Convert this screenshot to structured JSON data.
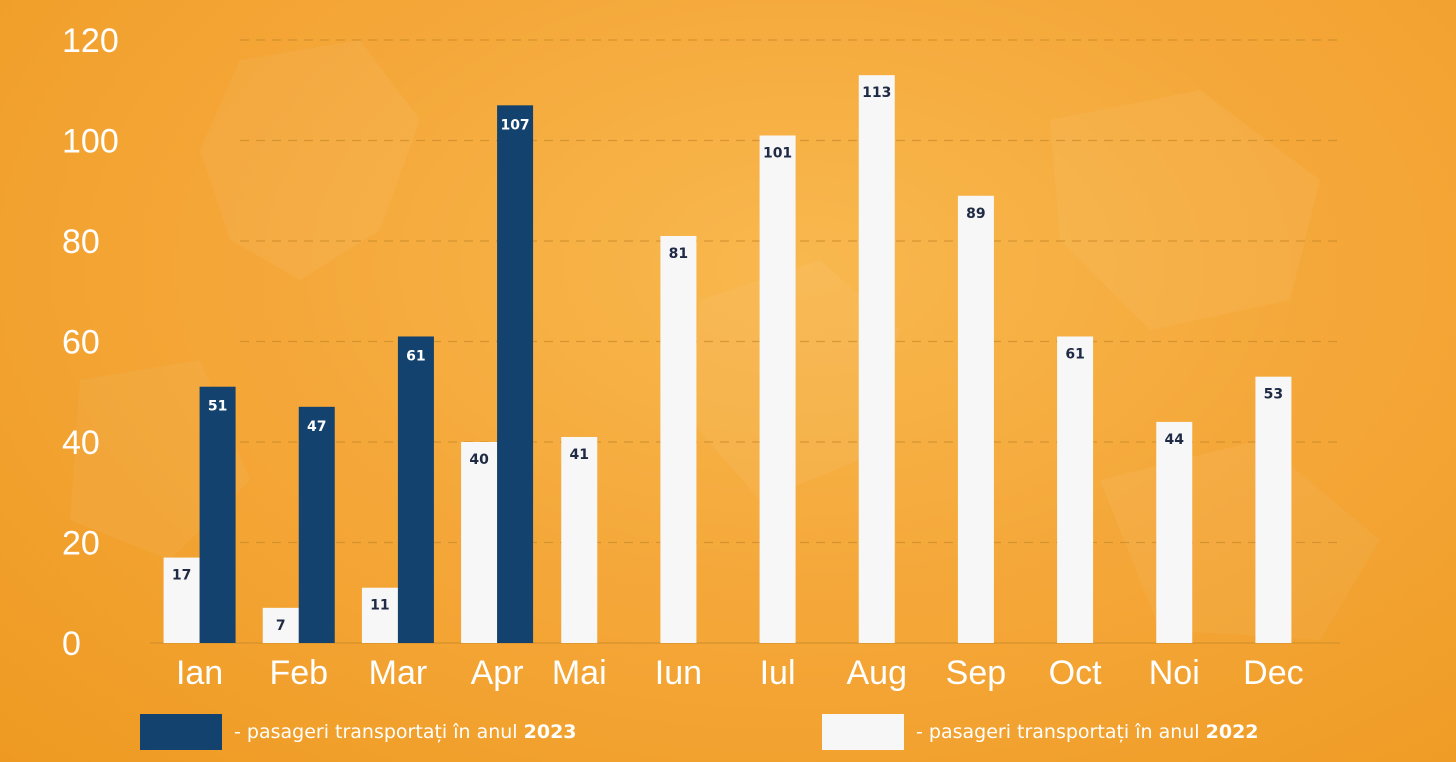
{
  "chart_data": {
    "type": "bar",
    "categories": [
      "Ian",
      "Feb",
      "Mar",
      "Apr",
      "Mai",
      "Iun",
      "Iul",
      "Aug",
      "Sep",
      "Oct",
      "Noi",
      "Dec"
    ],
    "series": [
      {
        "name": "2022",
        "values": [
          17,
          7,
          11,
          40,
          41,
          81,
          101,
          113,
          89,
          61,
          44,
          53
        ],
        "color": "#f7f7f7",
        "label_color": "#1f2a44"
      },
      {
        "name": "2023",
        "values": [
          51,
          47,
          61,
          107,
          null,
          null,
          null,
          null,
          null,
          null,
          null,
          null
        ],
        "color": "#14426e",
        "label_color": "#ffffff"
      }
    ],
    "yticks": [
      "0",
      "20",
      "40",
      "60",
      "80",
      "100",
      "120"
    ],
    "ylim": [
      0,
      120
    ],
    "grid": true,
    "legend_placement": "bottom"
  },
  "legend": {
    "items": [
      {
        "prefix": "- pasageri transportați în anul ",
        "year": "2023",
        "color": "#14426e"
      },
      {
        "prefix": "- pasageri transportați în anul ",
        "year": "2022",
        "color": "#f7f7f7"
      }
    ]
  }
}
